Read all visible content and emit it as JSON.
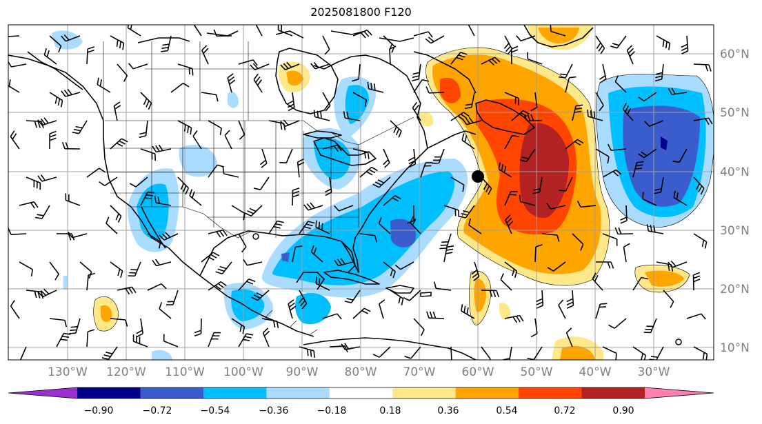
{
  "title": "2025081800 F120",
  "map": {
    "lat_labels": [
      "60°N",
      "50°N",
      "40°N",
      "30°N",
      "20°N",
      "10°N"
    ],
    "lon_labels": [
      "130°W",
      "120°W",
      "110°W",
      "100°W",
      "90°W",
      "80°W",
      "70°W",
      "60°W",
      "50°W",
      "40°W",
      "30°W"
    ],
    "gridline_color": "#a0a0a0",
    "coastline_color": "#000000",
    "storm_marker": {
      "lat": 38.9,
      "lon": -60.0,
      "label": ""
    }
  },
  "colorbar": {
    "ticks": [
      "−0.90",
      "−0.72",
      "−0.54",
      "−0.36",
      "−0.18",
      "0.18",
      "0.36",
      "0.54",
      "0.72",
      "0.90"
    ],
    "colors": [
      "#9b30d0",
      "#00008b",
      "#3a5ccc",
      "#00bfff",
      "#aadcff",
      "#ffffff",
      "#ffe88a",
      "#ffa500",
      "#ff4500",
      "#b22222",
      "#ff7fb0"
    ],
    "extend": "both"
  },
  "field_colors": {
    "strong_neg": "#3a5ccc",
    "neg": "#00bfff",
    "weak_neg": "#aadcff",
    "weak_pos": "#ffe88a",
    "pos": "#ffa500",
    "strong_pos": "#ff4500",
    "very_strong_pos": "#b22222"
  }
}
